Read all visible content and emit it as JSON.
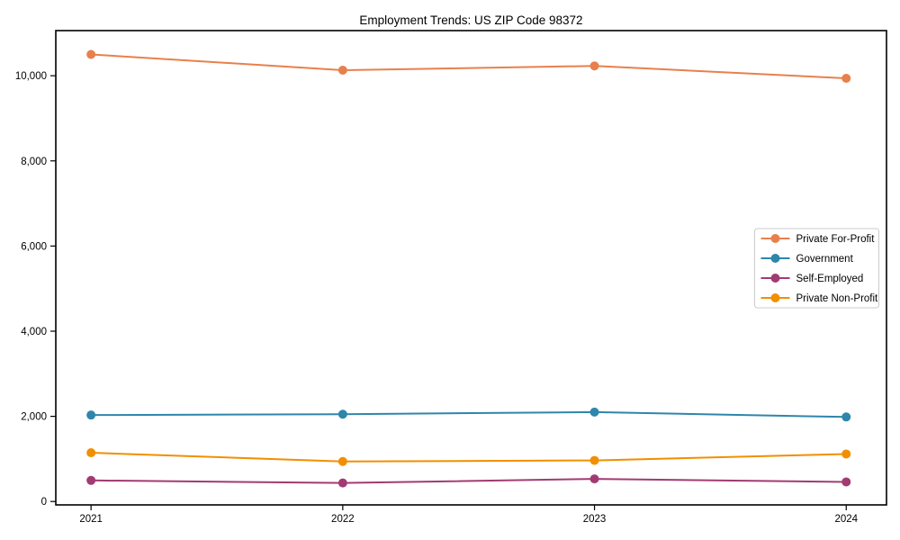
{
  "figure": {
    "background": "#ffffff",
    "axis_color": "#000000",
    "legend_border_color": "#cccccc",
    "legend_background": "#ffffff"
  },
  "chart_data": {
    "type": "line",
    "title": "Employment Trends: US ZIP Code 98372",
    "xlabel": "",
    "ylabel": "",
    "x": [
      2021,
      2022,
      2023,
      2024
    ],
    "xtick_labels": [
      "2021",
      "2022",
      "2023",
      "2024"
    ],
    "yticks": [
      0,
      2000,
      4000,
      6000,
      8000,
      10000
    ],
    "ytick_labels": [
      "0",
      "2,000",
      "4,000",
      "6,000",
      "8,000",
      "10,000"
    ],
    "xlim": [
      2020.86,
      2024.16
    ],
    "ylim": [
      -80,
      11060
    ],
    "grid": false,
    "legend_position": "center right",
    "marker": "circle",
    "series": [
      {
        "name": "Private For-Profit",
        "color": "#E8804C",
        "values": [
          10500,
          10130,
          10230,
          9940
        ]
      },
      {
        "name": "Government",
        "color": "#2E86AB",
        "values": [
          2030,
          2050,
          2100,
          1985
        ]
      },
      {
        "name": "Self-Employed",
        "color": "#A23B72",
        "values": [
          495,
          435,
          530,
          460
        ]
      },
      {
        "name": "Private Non-Profit",
        "color": "#F18F01",
        "values": [
          1145,
          940,
          965,
          1115
        ]
      }
    ]
  }
}
